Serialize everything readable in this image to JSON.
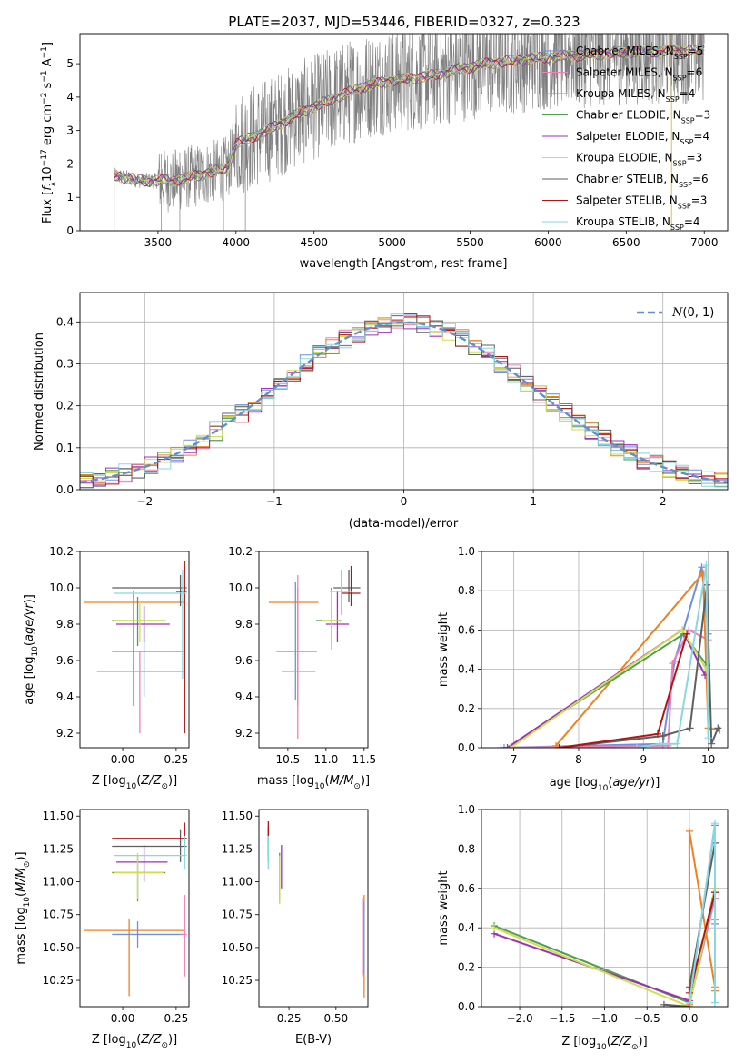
{
  "figure_title": "PLATE=2037, MJD=53446, FIBERID=0327, z=0.323",
  "colors": {
    "Chabrier MILES": "#6f8fdf",
    "Salpeter MILES": "#ef7fb6",
    "Kroupa MILES": "#f08020",
    "Chabrier ELODIE": "#4f9f4f",
    "Salpeter ELODIE": "#9f30b8",
    "Kroupa ELODIE": "#cfdf4f",
    "Chabrier STELIB": "#5f5f5f",
    "Salpeter STELIB": "#b01515",
    "Kroupa STELIB": "#88d8e0",
    "data": "#808080",
    "normal": "#5f8fcf"
  },
  "chart_data": [
    {
      "id": "spectrum",
      "type": "line",
      "title": "PLATE=2037, MJD=53446, FIBERID=0327, z=0.323",
      "xlabel": "wavelength [Angstrom, rest frame]",
      "ylabel": "Flux [f_λ 10^-17 erg cm^-2 s^-1 A^-1]",
      "xlim": [
        3000,
        7150
      ],
      "ylim": [
        0,
        5.9
      ],
      "xticks": [
        3500,
        4000,
        4500,
        5000,
        5500,
        6000,
        6500,
        7000
      ],
      "yticks": [
        0,
        1,
        2,
        3,
        4,
        5
      ],
      "legend_position": "top-right",
      "legend": [
        "Chabrier MILES, N_SSP=5",
        "Salpeter MILES, N_SSP=6",
        "Kroupa MILES, N_SSP=4",
        "Chabrier ELODIE, N_SSP=3",
        "Salpeter ELODIE, N_SSP=4",
        "Kroupa ELODIE, N_SSP=3",
        "Chabrier STELIB, N_SSP=6",
        "Salpeter STELIB, N_SSP=3",
        "Kroupa STELIB, N_SSP=4"
      ],
      "data_x_range": [
        3220,
        7000
      ],
      "continuum_points": [
        [
          3220,
          1.65
        ],
        [
          3400,
          1.5
        ],
        [
          3600,
          1.5
        ],
        [
          3800,
          1.7
        ],
        [
          3950,
          1.9
        ],
        [
          4000,
          2.6
        ],
        [
          4200,
          3.0
        ],
        [
          4400,
          3.5
        ],
        [
          4600,
          3.9
        ],
        [
          4800,
          4.3
        ],
        [
          5000,
          4.5
        ],
        [
          5200,
          4.6
        ],
        [
          5400,
          4.8
        ],
        [
          5600,
          5.0
        ],
        [
          5800,
          5.1
        ],
        [
          6000,
          5.2
        ],
        [
          6200,
          5.25
        ],
        [
          6500,
          5.35
        ],
        [
          7000,
          5.4
        ]
      ],
      "noise_amplitude": 1.6
    },
    {
      "id": "residuals",
      "type": "line",
      "xlabel": "(data-model)/error",
      "ylabel": "Normed distribution",
      "xlim": [
        -2.5,
        2.5
      ],
      "ylim": [
        0,
        0.47
      ],
      "xticks": [
        -2,
        -1,
        0,
        1,
        2
      ],
      "yticks": [
        0.0,
        0.1,
        0.2,
        0.3,
        0.4
      ],
      "grid": true,
      "legend_position": "top-right",
      "legend": [
        "N(0,1)"
      ],
      "bins": 50,
      "sigma": 1.0
    },
    {
      "id": "age-vs-Z",
      "type": "scatter",
      "xlabel": "Z [log10(Z/Z_sun)]",
      "ylabel": "age  [log10(age/yr)]",
      "xlim": [
        -0.2,
        0.31
      ],
      "ylim": [
        9.12,
        10.2
      ],
      "xticks": [
        0.0,
        0.25
      ],
      "yticks": [
        9.2,
        9.4,
        9.6,
        9.8,
        10.0,
        10.2
      ],
      "errorbars": [
        {
          "model": "Kroupa MILES",
          "x": 0.05,
          "xlo": -0.18,
          "xhi": 0.29,
          "y": 9.92,
          "ylo": 9.35,
          "yhi": 9.98
        },
        {
          "model": "Chabrier MILES",
          "x": 0.1,
          "xlo": -0.05,
          "xhi": 0.29,
          "y": 9.65,
          "ylo": 9.4,
          "yhi": 9.9
        },
        {
          "model": "Salpeter MILES",
          "x": 0.08,
          "xlo": -0.12,
          "xhi": 0.29,
          "y": 9.54,
          "ylo": 9.2,
          "yhi": 9.65
        },
        {
          "model": "Chabrier ELODIE",
          "x": 0.07,
          "xlo": -0.05,
          "xhi": 0.2,
          "y": 9.82,
          "ylo": 9.68,
          "yhi": 9.95
        },
        {
          "model": "Salpeter ELODIE",
          "x": 0.1,
          "xlo": -0.03,
          "xhi": 0.22,
          "y": 9.8,
          "ylo": 9.7,
          "yhi": 9.9
        },
        {
          "model": "Kroupa ELODIE",
          "x": 0.08,
          "xlo": -0.04,
          "xhi": 0.2,
          "y": 9.82,
          "ylo": 9.7,
          "yhi": 9.92
        },
        {
          "model": "Chabrier STELIB",
          "x": 0.27,
          "xlo": -0.05,
          "xhi": 0.3,
          "y": 10.0,
          "ylo": 9.9,
          "yhi": 10.07
        },
        {
          "model": "Salpeter STELIB",
          "x": 0.29,
          "xlo": 0.25,
          "xhi": 0.3,
          "y": 9.98,
          "ylo": 9.2,
          "yhi": 10.15
        },
        {
          "model": "Kroupa STELIB",
          "x": 0.28,
          "xlo": -0.04,
          "xhi": 0.3,
          "y": 9.97,
          "ylo": 9.5,
          "yhi": 10.1
        }
      ]
    },
    {
      "id": "age-vs-mass",
      "type": "scatter",
      "xlabel": "mass [log10(M/M_sun)]",
      "ylabel": "",
      "xlim": [
        10.12,
        11.55
      ],
      "ylim": [
        9.12,
        10.2
      ],
      "xticks": [
        10.5,
        11.0,
        11.5
      ],
      "yticks": [
        9.2,
        9.4,
        9.6,
        9.8,
        10.0,
        10.2
      ],
      "errorbars": [
        {
          "model": "Kroupa MILES",
          "x": 10.63,
          "xlo": 10.25,
          "xhi": 10.9,
          "y": 9.92,
          "ylo": 9.35,
          "yhi": 10.0
        },
        {
          "model": "Chabrier MILES",
          "x": 10.6,
          "xlo": 10.35,
          "xhi": 10.88,
          "y": 9.65,
          "ylo": 9.38,
          "yhi": 10.03
        },
        {
          "model": "Salpeter MILES",
          "x": 10.63,
          "xlo": 10.42,
          "xhi": 10.86,
          "y": 9.54,
          "ylo": 9.17,
          "yhi": 10.07
        },
        {
          "model": "Chabrier ELODIE",
          "x": 11.07,
          "xlo": 10.87,
          "xhi": 11.2,
          "y": 9.82,
          "ylo": 9.68,
          "yhi": 10.0
        },
        {
          "model": "Salpeter ELODIE",
          "x": 11.15,
          "xlo": 11.0,
          "xhi": 11.3,
          "y": 9.8,
          "ylo": 9.7,
          "yhi": 9.98
        },
        {
          "model": "Kroupa ELODIE",
          "x": 11.07,
          "xlo": 10.95,
          "xhi": 11.17,
          "y": 9.82,
          "ylo": 9.66,
          "yhi": 9.99
        },
        {
          "model": "Chabrier STELIB",
          "x": 11.3,
          "xlo": 11.1,
          "xhi": 11.45,
          "y": 10.0,
          "ylo": 9.92,
          "yhi": 10.1
        },
        {
          "model": "Salpeter STELIB",
          "x": 11.33,
          "xlo": 11.2,
          "xhi": 11.45,
          "y": 9.97,
          "ylo": 9.9,
          "yhi": 10.12
        },
        {
          "model": "Kroupa STELIB",
          "x": 11.2,
          "xlo": 11.05,
          "xhi": 11.35,
          "y": 9.98,
          "ylo": 9.85,
          "yhi": 10.1
        }
      ]
    },
    {
      "id": "weight-vs-age",
      "type": "line",
      "xlabel": "age  [log10(age/yr)]",
      "ylabel": "mass weight",
      "xlim": [
        6.5,
        10.3
      ],
      "ylim": [
        0,
        1.0
      ],
      "xticks": [
        7,
        8,
        9,
        10
      ],
      "yticks": [
        0.0,
        0.2,
        0.4,
        0.6,
        0.8,
        1.0
      ],
      "grid": true,
      "series": [
        {
          "model": "Chabrier MILES",
          "x": [
            6.85,
            9.3,
            9.48,
            9.9,
            10.0
          ],
          "y": [
            0.0,
            0.02,
            0.44,
            0.92,
            0.58
          ]
        },
        {
          "model": "Salpeter MILES",
          "x": [
            6.8,
            9.38,
            9.45,
            9.7,
            10.0
          ],
          "y": [
            0.0,
            0.01,
            0.43,
            0.6,
            0.55
          ]
        },
        {
          "model": "Kroupa MILES",
          "x": [
            7.65,
            9.92,
            10.0,
            10.18
          ],
          "y": [
            0.01,
            0.89,
            0.1,
            0.09
          ]
        },
        {
          "model": "Chabrier ELODIE",
          "x": [
            6.9,
            9.62,
            9.98
          ],
          "y": [
            0.0,
            0.58,
            0.42
          ]
        },
        {
          "model": "Salpeter ELODIE",
          "x": [
            6.9,
            9.6,
            9.95
          ],
          "y": [
            0.0,
            0.6,
            0.37
          ]
        },
        {
          "model": "Kroupa ELODIE",
          "x": [
            6.95,
            9.6,
            9.97
          ],
          "y": [
            0.0,
            0.6,
            0.4
          ]
        },
        {
          "model": "Chabrier STELIB",
          "x": [
            7.7,
            9.3,
            9.72,
            9.98,
            10.05,
            10.15
          ],
          "y": [
            0.0,
            0.06,
            0.1,
            0.83,
            0.02,
            0.1
          ]
        },
        {
          "model": "Salpeter STELIB",
          "x": [
            7.7,
            9.22,
            9.67
          ],
          "y": [
            0.0,
            0.07,
            0.58
          ]
        },
        {
          "model": "Kroupa STELIB",
          "x": [
            8.9,
            9.25,
            9.52,
            9.97,
            10.0
          ],
          "y": [
            0.0,
            0.02,
            0.02,
            0.93,
            0.05
          ]
        }
      ]
    },
    {
      "id": "mass-vs-Z",
      "type": "scatter",
      "xlabel": "Z [log10(Z/Z_sun)]",
      "ylabel": "mass [log10(M/M_sun)]",
      "xlim": [
        -0.2,
        0.31
      ],
      "ylim": [
        10.05,
        11.55
      ],
      "xticks": [
        0.0,
        0.25
      ],
      "yticks": [
        10.25,
        10.5,
        10.75,
        11.0,
        11.25,
        11.5
      ],
      "errorbars": [
        {
          "model": "Kroupa MILES",
          "x": 0.03,
          "xlo": -0.18,
          "xhi": 0.29,
          "y": 10.63,
          "ylo": 10.13,
          "yhi": 10.72
        },
        {
          "model": "Chabrier MILES",
          "x": 0.07,
          "xlo": -0.05,
          "xhi": 0.29,
          "y": 10.6,
          "ylo": 10.5,
          "yhi": 10.7
        },
        {
          "model": "Salpeter MILES",
          "x": 0.29,
          "xlo": 0.27,
          "xhi": 0.3,
          "y": 10.6,
          "ylo": 10.28,
          "yhi": 10.9
        },
        {
          "model": "Chabrier ELODIE",
          "x": 0.07,
          "xlo": -0.05,
          "xhi": 0.2,
          "y": 11.07,
          "ylo": 10.85,
          "yhi": 11.2
        },
        {
          "model": "Salpeter ELODIE",
          "x": 0.1,
          "xlo": -0.03,
          "xhi": 0.21,
          "y": 11.15,
          "ylo": 11.0,
          "yhi": 11.28
        },
        {
          "model": "Kroupa ELODIE",
          "x": 0.07,
          "xlo": -0.04,
          "xhi": 0.19,
          "y": 11.07,
          "ylo": 10.87,
          "yhi": 11.22
        },
        {
          "model": "Chabrier STELIB",
          "x": 0.27,
          "xlo": -0.05,
          "xhi": 0.3,
          "y": 11.27,
          "ylo": 11.15,
          "yhi": 11.4
        },
        {
          "model": "Salpeter STELIB",
          "x": 0.29,
          "xlo": -0.05,
          "xhi": 0.3,
          "y": 11.33,
          "ylo": 11.2,
          "yhi": 11.45
        },
        {
          "model": "Kroupa STELIB",
          "x": 0.29,
          "xlo": -0.04,
          "xhi": 0.3,
          "y": 11.2,
          "ylo": 11.1,
          "yhi": 11.35
        }
      ]
    },
    {
      "id": "mass-vs-ebv",
      "type": "scatter",
      "xlabel": "E(B-V)",
      "ylabel": "",
      "xlim": [
        0.09,
        0.67
      ],
      "ylim": [
        10.05,
        11.55
      ],
      "xticks": [
        0.25,
        0.5
      ],
      "yticks": [
        10.25,
        10.5,
        10.75,
        11.0,
        11.25,
        11.5
      ],
      "errorbars": [
        {
          "model": "Kroupa MILES",
          "x": 0.65,
          "xlo": 0.65,
          "xhi": 0.65,
          "y": 10.63,
          "ylo": 10.12,
          "yhi": 10.9
        },
        {
          "model": "Chabrier MILES",
          "x": 0.65,
          "xlo": 0.65,
          "xhi": 0.65,
          "y": 10.6,
          "ylo": 10.3,
          "yhi": 10.85
        },
        {
          "model": "Salpeter MILES",
          "x": 0.64,
          "xlo": 0.64,
          "xhi": 0.64,
          "y": 10.6,
          "ylo": 10.28,
          "yhi": 10.88
        },
        {
          "model": "Chabrier ELODIE",
          "x": 0.2,
          "xlo": 0.2,
          "xhi": 0.2,
          "y": 11.07,
          "ylo": 10.85,
          "yhi": 11.22
        },
        {
          "model": "Salpeter ELODIE",
          "x": 0.21,
          "xlo": 0.21,
          "xhi": 0.21,
          "y": 11.15,
          "ylo": 10.95,
          "yhi": 11.28
        },
        {
          "model": "Kroupa ELODIE",
          "x": 0.2,
          "xlo": 0.2,
          "xhi": 0.2,
          "y": 11.07,
          "ylo": 10.83,
          "yhi": 11.2
        },
        {
          "model": "Chabrier STELIB",
          "x": 0.14,
          "xlo": 0.14,
          "xhi": 0.14,
          "y": 11.27,
          "ylo": 11.15,
          "yhi": 11.42
        },
        {
          "model": "Salpeter STELIB",
          "x": 0.14,
          "xlo": 0.14,
          "xhi": 0.14,
          "y": 11.33,
          "ylo": 11.2,
          "yhi": 11.46
        },
        {
          "model": "Kroupa STELIB",
          "x": 0.14,
          "xlo": 0.14,
          "xhi": 0.14,
          "y": 11.2,
          "ylo": 11.1,
          "yhi": 11.35
        }
      ]
    },
    {
      "id": "weight-vs-Z",
      "type": "line",
      "xlabel": "Z [log10(Z/Z_sun)]",
      "ylabel": "mass weight",
      "xlim": [
        -2.45,
        0.45
      ],
      "ylim": [
        0,
        1.0
      ],
      "xticks": [
        -2.0,
        -1.5,
        -1.0,
        -0.5,
        0.0
      ],
      "yticks": [
        0.0,
        0.2,
        0.4,
        0.6,
        0.8,
        1.0
      ],
      "grid": true,
      "series": [
        {
          "model": "Chabrier MILES",
          "x": [
            0.0,
            0.3,
            0.3
          ],
          "y": [
            0.02,
            0.92,
            0.42
          ]
        },
        {
          "model": "Salpeter MILES",
          "x": [
            0.0,
            0.3,
            0.3
          ],
          "y": [
            0.01,
            0.55,
            0.44
          ]
        },
        {
          "model": "Kroupa MILES",
          "x": [
            0.0,
            0.0,
            0.3,
            0.3
          ],
          "y": [
            0.01,
            0.89,
            0.1,
            0.08
          ]
        },
        {
          "model": "Chabrier ELODIE",
          "x": [
            -2.3,
            0.0,
            0.3
          ],
          "y": [
            0.41,
            0.02,
            0.58
          ]
        },
        {
          "model": "Salpeter ELODIE",
          "x": [
            -2.3,
            0.0,
            0.3
          ],
          "y": [
            0.37,
            0.03,
            0.6
          ]
        },
        {
          "model": "Kroupa ELODIE",
          "x": [
            -2.3,
            0.0,
            0.3
          ],
          "y": [
            0.4,
            0.0,
            0.6
          ]
        },
        {
          "model": "Chabrier STELIB",
          "x": [
            -0.3,
            0.0,
            0.0,
            0.3
          ],
          "y": [
            0.01,
            0.0,
            0.1,
            0.83
          ]
        },
        {
          "model": "Salpeter STELIB",
          "x": [
            0.0,
            0.3
          ],
          "y": [
            0.07,
            0.58
          ]
        },
        {
          "model": "Kroupa STELIB",
          "x": [
            0.0,
            0.3,
            0.3
          ],
          "y": [
            0.02,
            0.93,
            0.02
          ]
        }
      ]
    }
  ]
}
